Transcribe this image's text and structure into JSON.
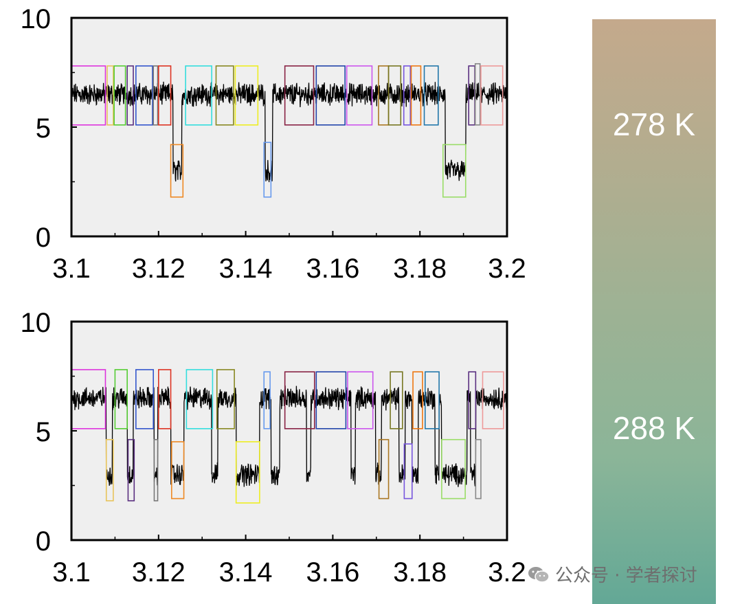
{
  "colors": {
    "gradient_top": "#c4a98c",
    "gradient_bottom": "#63a896",
    "plot_background": "#efefef",
    "trace": "#000000"
  },
  "temperature_bar": {
    "top_label": "278 K",
    "bottom_label": "288 K"
  },
  "watermark": {
    "icon": "wechat-icon",
    "text": "公众号 · 学者探讨"
  },
  "chart_data": [
    {
      "type": "line",
      "panel": "top",
      "xlim": [
        3.1,
        3.2
      ],
      "ylim": [
        0,
        10
      ],
      "xticks": [
        "3.1",
        "3.12",
        "3.14",
        "3.16",
        "3.18",
        "3.2"
      ],
      "yticks": [
        "0",
        "5",
        "10"
      ],
      "grid": false,
      "levels": {
        "high": 6.5,
        "low": 3.0
      },
      "noise": 0.4,
      "low_segments": [
        [
          3.1233,
          3.1253
        ],
        [
          3.1445,
          3.1462
        ],
        [
          3.1858,
          3.1905
        ]
      ],
      "state_boxes": [
        {
          "x0": 3.1,
          "x1": 3.1078,
          "y0": 5.1,
          "y1": 7.8,
          "color": "#dd33dd"
        },
        {
          "x0": 3.1082,
          "x1": 3.1096,
          "y0": 5.1,
          "y1": 7.8,
          "color": "#e8c45a"
        },
        {
          "x0": 3.1098,
          "x1": 3.1124,
          "y0": 5.1,
          "y1": 7.8,
          "color": "#55cc33"
        },
        {
          "x0": 3.1128,
          "x1": 3.1142,
          "y0": 5.1,
          "y1": 7.8,
          "color": "#5a2f80"
        },
        {
          "x0": 3.1148,
          "x1": 3.1186,
          "y0": 5.1,
          "y1": 7.8,
          "color": "#3355cc"
        },
        {
          "x0": 3.1188,
          "x1": 3.1198,
          "y0": 5.1,
          "y1": 7.8,
          "color": "#777777"
        },
        {
          "x0": 3.12,
          "x1": 3.1228,
          "y0": 5.1,
          "y1": 7.8,
          "color": "#dd3322"
        },
        {
          "x0": 3.1228,
          "x1": 3.1256,
          "y0": 1.8,
          "y1": 4.2,
          "color": "#ee8822"
        },
        {
          "x0": 3.1262,
          "x1": 3.1322,
          "y0": 5.1,
          "y1": 7.8,
          "color": "#33dddd"
        },
        {
          "x0": 3.1332,
          "x1": 3.1372,
          "y0": 5.1,
          "y1": 7.8,
          "color": "#888822"
        },
        {
          "x0": 3.1376,
          "x1": 3.1428,
          "y0": 5.1,
          "y1": 7.8,
          "color": "#eeee22"
        },
        {
          "x0": 3.1442,
          "x1": 3.1458,
          "y0": 1.8,
          "y1": 4.3,
          "color": "#6699ee"
        },
        {
          "x0": 3.149,
          "x1": 3.1556,
          "y0": 5.1,
          "y1": 7.8,
          "color": "#882244"
        },
        {
          "x0": 3.1562,
          "x1": 3.1628,
          "y0": 5.1,
          "y1": 7.8,
          "color": "#2244aa"
        },
        {
          "x0": 3.1632,
          "x1": 3.169,
          "y0": 5.1,
          "y1": 7.8,
          "color": "#cc55ee"
        },
        {
          "x0": 3.1705,
          "x1": 3.1728,
          "y0": 5.1,
          "y1": 7.8,
          "color": "#aa7722"
        },
        {
          "x0": 3.1728,
          "x1": 3.1756,
          "y0": 5.1,
          "y1": 7.8,
          "color": "#777722"
        },
        {
          "x0": 3.1763,
          "x1": 3.1778,
          "y0": 5.1,
          "y1": 7.8,
          "color": "#7755dd"
        },
        {
          "x0": 3.178,
          "x1": 3.1802,
          "y0": 5.1,
          "y1": 7.8,
          "color": "#ee7711"
        },
        {
          "x0": 3.181,
          "x1": 3.1842,
          "y0": 5.1,
          "y1": 7.8,
          "color": "#2277aa"
        },
        {
          "x0": 3.1853,
          "x1": 3.1905,
          "y0": 1.8,
          "y1": 4.2,
          "color": "#99dd66"
        },
        {
          "x0": 3.1912,
          "x1": 3.1926,
          "y0": 5.1,
          "y1": 7.8,
          "color": "#5a2f80"
        },
        {
          "x0": 3.1927,
          "x1": 3.1938,
          "y0": 5.1,
          "y1": 7.9,
          "color": "#888888"
        },
        {
          "x0": 3.194,
          "x1": 3.199,
          "y0": 5.1,
          "y1": 7.8,
          "color": "#ee9999"
        }
      ]
    },
    {
      "type": "line",
      "panel": "bottom",
      "xlim": [
        3.1,
        3.2
      ],
      "ylim": [
        0,
        10
      ],
      "xticks": [
        "3.1",
        "3.12",
        "3.14",
        "3.16",
        "3.18",
        "3.2"
      ],
      "yticks": [
        "0",
        "5",
        "10"
      ],
      "grid": false,
      "levels": {
        "high": 6.5,
        "low": 3.0
      },
      "noise": 0.4,
      "low_segments": [
        [
          3.108,
          3.1094
        ],
        [
          3.1128,
          3.1142
        ],
        [
          3.119,
          3.1198
        ],
        [
          3.1228,
          3.1258
        ],
        [
          3.1322,
          3.1336
        ],
        [
          3.1378,
          3.1432
        ],
        [
          3.1458,
          3.1478
        ],
        [
          3.154,
          3.155
        ],
        [
          3.1642,
          3.1652
        ],
        [
          3.1698,
          3.1712
        ],
        [
          3.1752,
          3.1766
        ],
        [
          3.1782,
          3.1796
        ],
        [
          3.1835,
          3.1844
        ],
        [
          3.185,
          3.1908
        ],
        [
          3.1916,
          3.1928
        ]
      ],
      "state_boxes": [
        {
          "x0": 3.1,
          "x1": 3.1078,
          "y0": 5.1,
          "y1": 7.8,
          "color": "#dd33dd"
        },
        {
          "x0": 3.108,
          "x1": 3.1096,
          "y0": 1.8,
          "y1": 4.6,
          "color": "#e8c45a"
        },
        {
          "x0": 3.11,
          "x1": 3.1128,
          "y0": 5.1,
          "y1": 7.8,
          "color": "#55cc33"
        },
        {
          "x0": 3.113,
          "x1": 3.1144,
          "y0": 1.8,
          "y1": 4.6,
          "color": "#5a2f80"
        },
        {
          "x0": 3.1148,
          "x1": 3.1188,
          "y0": 5.1,
          "y1": 7.8,
          "color": "#3355cc"
        },
        {
          "x0": 3.119,
          "x1": 3.1198,
          "y0": 1.8,
          "y1": 4.6,
          "color": "#777777"
        },
        {
          "x0": 3.12,
          "x1": 3.1228,
          "y0": 5.1,
          "y1": 7.8,
          "color": "#dd3322"
        },
        {
          "x0": 3.123,
          "x1": 3.1258,
          "y0": 1.9,
          "y1": 4.5,
          "color": "#ee8822"
        },
        {
          "x0": 3.1264,
          "x1": 3.1324,
          "y0": 5.1,
          "y1": 7.8,
          "color": "#33dddd"
        },
        {
          "x0": 3.1334,
          "x1": 3.1374,
          "y0": 5.1,
          "y1": 7.8,
          "color": "#888822"
        },
        {
          "x0": 3.1378,
          "x1": 3.1432,
          "y0": 1.7,
          "y1": 4.5,
          "color": "#eeee22"
        },
        {
          "x0": 3.1442,
          "x1": 3.1456,
          "y0": 5.1,
          "y1": 7.7,
          "color": "#6699ee"
        },
        {
          "x0": 3.149,
          "x1": 3.1558,
          "y0": 5.1,
          "y1": 7.7,
          "color": "#882244"
        },
        {
          "x0": 3.1562,
          "x1": 3.163,
          "y0": 5.1,
          "y1": 7.7,
          "color": "#2244aa"
        },
        {
          "x0": 3.1634,
          "x1": 3.1692,
          "y0": 5.1,
          "y1": 7.7,
          "color": "#cc55ee"
        },
        {
          "x0": 3.1706,
          "x1": 3.1728,
          "y0": 1.9,
          "y1": 4.6,
          "color": "#aa7722"
        },
        {
          "x0": 3.1732,
          "x1": 3.176,
          "y0": 5.1,
          "y1": 7.7,
          "color": "#777722"
        },
        {
          "x0": 3.1764,
          "x1": 3.1782,
          "y0": 1.9,
          "y1": 4.4,
          "color": "#7755dd"
        },
        {
          "x0": 3.1784,
          "x1": 3.1806,
          "y0": 5.1,
          "y1": 7.7,
          "color": "#ee7711"
        },
        {
          "x0": 3.1812,
          "x1": 3.1844,
          "y0": 5.1,
          "y1": 7.7,
          "color": "#2277aa"
        },
        {
          "x0": 3.185,
          "x1": 3.1904,
          "y0": 1.9,
          "y1": 4.6,
          "color": "#99dd66"
        },
        {
          "x0": 3.1912,
          "x1": 3.1928,
          "y0": 5.1,
          "y1": 7.7,
          "color": "#5a2f80"
        },
        {
          "x0": 3.1928,
          "x1": 3.194,
          "y0": 1.9,
          "y1": 4.6,
          "color": "#888888"
        },
        {
          "x0": 3.1944,
          "x1": 3.1992,
          "y0": 5.1,
          "y1": 7.7,
          "color": "#ee9999"
        }
      ]
    }
  ]
}
